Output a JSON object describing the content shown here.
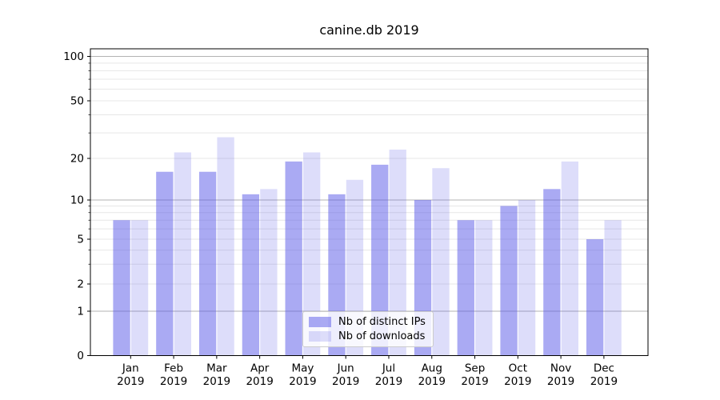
{
  "figure": {
    "background": "#ffffff"
  },
  "chart_data": {
    "type": "bar",
    "title": "canine.db 2019",
    "categories": [
      "Jan 2019",
      "Feb 2019",
      "Mar 2019",
      "Apr 2019",
      "May 2019",
      "Jun 2019",
      "Jul 2019",
      "Aug 2019",
      "Sep 2019",
      "Oct 2019",
      "Nov 2019",
      "Dec 2019"
    ],
    "series": [
      {
        "name": "Nb of distinct IPs",
        "color": "#5656e8",
        "opacity": 0.5,
        "values": [
          7,
          16,
          16,
          11,
          19,
          11,
          18,
          10,
          7,
          9,
          12,
          5
        ]
      },
      {
        "name": "Nb of downloads",
        "color": "#5656e8",
        "opacity": 0.2,
        "values": [
          7,
          22,
          28,
          12,
          22,
          14,
          23,
          17,
          7,
          10,
          19,
          7
        ]
      }
    ],
    "xlabel": "",
    "ylabel": "",
    "yscale": "asinh",
    "yticks": [
      0,
      1,
      2,
      5,
      10,
      20,
      50,
      100
    ],
    "ytick_minor": [
      2,
      3,
      4,
      5,
      6,
      7,
      8,
      9,
      20,
      30,
      40,
      50,
      60,
      70,
      80,
      90
    ],
    "ytick_major_gridlines": [
      1,
      10,
      100
    ],
    "ylim": [
      0,
      113
    ],
    "grid": true,
    "legend_position": "lower center (inside axes)"
  },
  "colors": {
    "grid_major": "#b3b3b3",
    "grid_minor": "#e7e7e7",
    "spine": "#000000",
    "tick_label": "#000000",
    "legend_border": "#cccccc",
    "legend_background": "rgba(255,255,255,0.8)"
  }
}
